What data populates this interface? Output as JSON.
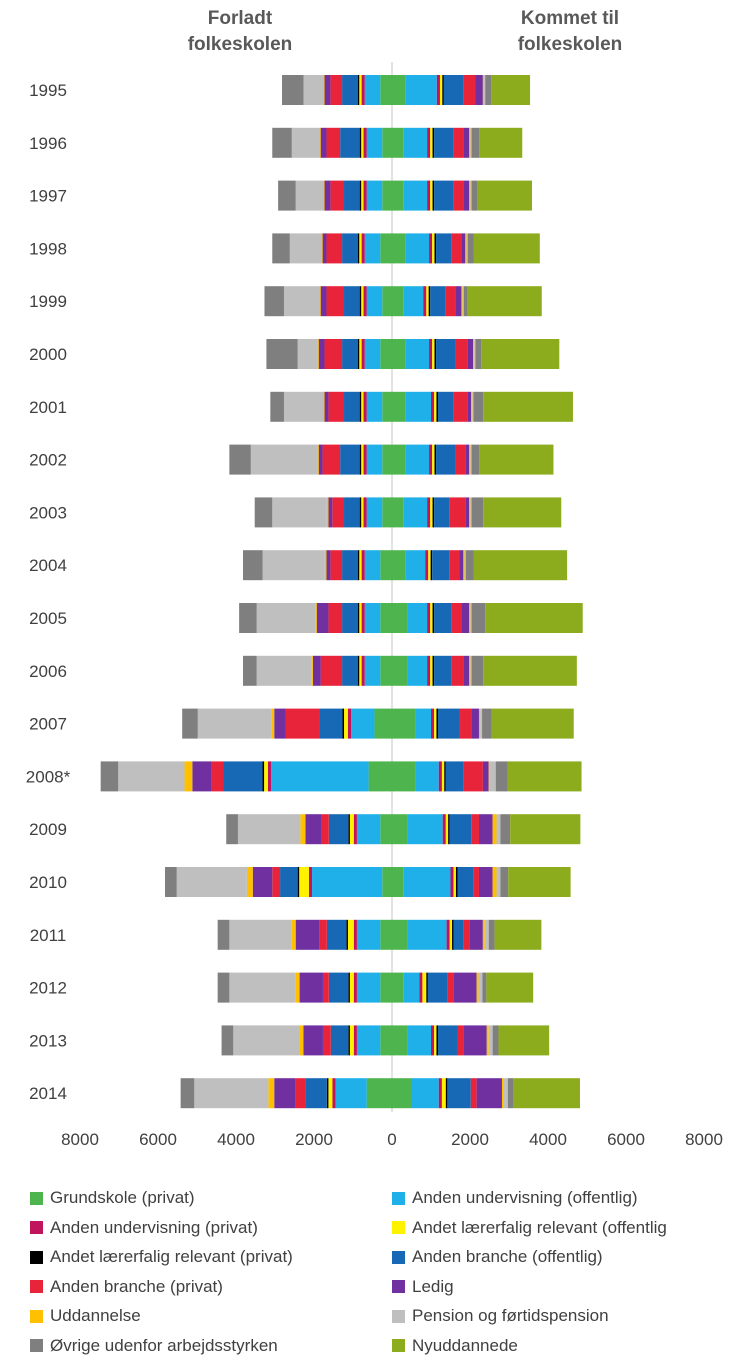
{
  "headers": {
    "left_line1": "Forladt",
    "left_line2": "folkeskolen",
    "right_line1": "Kommet til",
    "right_line2": "folkeskolen"
  },
  "categories": [
    "Grundskole",
    "Anden undervisning",
    "Andet lærerfalig relevant",
    "Anden branche",
    "Ledig",
    "Uddannelse",
    "Pension og førtidspension",
    "Øvrige udenfor arbejdsstyrken",
    "Nyuddannede"
  ],
  "colors": {
    "Grundskole": "#4eb44e",
    "Anden undervisning": "#1fb0ea",
    "Andet lærerfalig relevant": "#fff200",
    "Anden branche": "#1769b5",
    "Ledig": "#7030a0",
    "Uddannelse": "#ffc000",
    "Pension og førtidspension": "#bfbfbf",
    "Øvrige udenfor arbejdsstyrken": "#7f7f7f",
    "Nyuddannede": "#8cac1e",
    "Anden undervisning (privat)": "#c0145c",
    "Andet lærerfalig relevant (privat)": "#000000",
    "Anden branche (privat)": "#e8243a"
  },
  "chart_data": {
    "type": "bar",
    "orientation": "horizontal-diverging",
    "categories": [
      "1995",
      "1996",
      "1997",
      "1998",
      "1999",
      "2000",
      "2001",
      "2002",
      "2003",
      "2004",
      "2005",
      "2006",
      "2007",
      "2008*",
      "2009",
      "2010",
      "2011",
      "2012",
      "2013",
      "2014"
    ],
    "xlim": [
      -8000,
      8000
    ],
    "x_ticks": [
      "8000",
      "6000",
      "4000",
      "2000",
      "0",
      "2000",
      "4000",
      "6000",
      "8000"
    ],
    "left_series_order": [
      "Grundskole (privat)",
      "Anden undervisning (offentlig)",
      "Anden undervisning (privat)",
      "Andet lærerfalig relevant (offentlig)",
      "Andet lærerfalig relevant (privat)",
      "Anden branche (offentlig)",
      "Anden branche (privat)",
      "Ledig",
      "Uddannelse",
      "Pension og førtidspension",
      "Øvrige udenfor arbejdsstyrken"
    ],
    "right_series_order": [
      "Grundskole (privat)",
      "Anden undervisning (offentlig)",
      "Anden undervisning (privat)",
      "Andet lærerfalig relevant (offentlig)",
      "Andet lærerfalig relevant (privat)",
      "Anden branche (offentlig)",
      "Anden branche (privat)",
      "Ledig",
      "Uddannelse",
      "Pension og førtidspension",
      "Øvrige udenfor arbejdsstyrken",
      "Nyuddannede"
    ],
    "left_values": {
      "Grundskole (privat)": [
        300,
        250,
        250,
        300,
        250,
        300,
        250,
        250,
        250,
        300,
        300,
        300,
        450,
        600,
        300,
        250,
        300,
        300,
        300,
        650
      ],
      "Anden undervisning (offentlig)": [
        400,
        400,
        400,
        400,
        400,
        400,
        400,
        400,
        400,
        400,
        400,
        400,
        600,
        2500,
        600,
        1800,
        600,
        600,
        600,
        800
      ],
      "Anden undervisning (privat)": [
        80,
        80,
        80,
        80,
        80,
        80,
        80,
        80,
        80,
        80,
        80,
        80,
        80,
        80,
        80,
        80,
        80,
        80,
        80,
        80
      ],
      "Andet lærerfalig relevant (offentlig)": [
        60,
        60,
        60,
        60,
        60,
        60,
        60,
        60,
        60,
        60,
        60,
        60,
        100,
        100,
        100,
        250,
        150,
        100,
        100,
        100
      ],
      "Andet lærerfalig relevant (privat)": [
        40,
        40,
        40,
        40,
        40,
        40,
        40,
        40,
        40,
        40,
        40,
        40,
        40,
        40,
        40,
        40,
        40,
        40,
        40,
        40
      ],
      "Anden branche (offentlig)": [
        400,
        500,
        400,
        400,
        400,
        400,
        400,
        500,
        400,
        400,
        400,
        400,
        600,
        1000,
        500,
        450,
        500,
        500,
        450,
        550
      ],
      "Anden branche (privat)": [
        300,
        350,
        350,
        400,
        450,
        450,
        400,
        450,
        300,
        300,
        350,
        550,
        850,
        300,
        200,
        200,
        200,
        150,
        200,
        250
      ],
      "Ledig": [
        150,
        150,
        150,
        100,
        150,
        150,
        100,
        100,
        100,
        100,
        300,
        200,
        300,
        500,
        400,
        500,
        600,
        600,
        500,
        550
      ],
      "Uddannelse": [
        40,
        40,
        40,
        40,
        40,
        40,
        40,
        40,
        40,
        40,
        40,
        40,
        60,
        200,
        130,
        150,
        100,
        100,
        100,
        150
      ],
      "Pension og førtidspension": [
        500,
        700,
        700,
        800,
        900,
        500,
        1000,
        1700,
        1400,
        1600,
        1500,
        1400,
        1900,
        1700,
        1600,
        1800,
        1600,
        1700,
        1700,
        1900
      ],
      "Øvrige udenfor arbejdsstyrken": [
        550,
        500,
        450,
        450,
        500,
        800,
        350,
        550,
        450,
        500,
        450,
        350,
        400,
        450,
        300,
        300,
        300,
        300,
        300,
        350
      ]
    },
    "right_values": {
      "Grundskole (privat)": [
        350,
        300,
        300,
        350,
        300,
        350,
        350,
        350,
        300,
        350,
        400,
        400,
        600,
        600,
        400,
        300,
        400,
        300,
        400,
        500
      ],
      "Anden undervisning (offentlig)": [
        800,
        600,
        600,
        600,
        500,
        600,
        650,
        600,
        600,
        500,
        500,
        500,
        400,
        600,
        900,
        1200,
        1000,
        400,
        600,
        700
      ],
      "Anden undervisning (privat)": [
        80,
        80,
        80,
        80,
        80,
        80,
        80,
        80,
        80,
        80,
        80,
        80,
        80,
        80,
        80,
        80,
        80,
        80,
        80,
        80
      ],
      "Andet lærerfalig relevant (offentlig)": [
        60,
        60,
        60,
        60,
        60,
        60,
        60,
        60,
        60,
        60,
        60,
        60,
        60,
        60,
        60,
        60,
        60,
        100,
        60,
        100
      ],
      "Andet lærerfalig relevant (privat)": [
        40,
        40,
        40,
        40,
        40,
        40,
        40,
        40,
        40,
        40,
        40,
        40,
        40,
        40,
        40,
        40,
        40,
        40,
        40,
        40
      ],
      "Anden branche (offentlig)": [
        500,
        500,
        500,
        400,
        400,
        500,
        400,
        500,
        400,
        450,
        450,
        450,
        550,
        450,
        550,
        400,
        250,
        500,
        500,
        600
      ],
      "Anden branche (privat)": [
        300,
        250,
        250,
        250,
        250,
        300,
        350,
        250,
        400,
        250,
        250,
        300,
        300,
        500,
        200,
        150,
        150,
        150,
        150,
        150
      ],
      "Ledig": [
        200,
        150,
        150,
        100,
        150,
        150,
        100,
        100,
        100,
        100,
        200,
        150,
        200,
        150,
        350,
        350,
        350,
        600,
        600,
        650
      ],
      "Uddannelse": [
        30,
        30,
        30,
        30,
        30,
        30,
        30,
        30,
        30,
        30,
        30,
        30,
        30,
        30,
        100,
        100,
        50,
        50,
        50,
        50
      ],
      "Pension og førtidspension": [
        30,
        30,
        30,
        30,
        30,
        30,
        30,
        30,
        30,
        30,
        30,
        30,
        50,
        150,
        100,
        100,
        100,
        100,
        100,
        100
      ],
      "Øvrige udenfor arbejdsstyrken": [
        150,
        200,
        150,
        150,
        100,
        150,
        250,
        200,
        300,
        200,
        350,
        300,
        250,
        300,
        250,
        200,
        150,
        100,
        150,
        150
      ],
      "Nyuddannede": [
        1000,
        1100,
        1400,
        1700,
        1900,
        2000,
        2300,
        1900,
        2000,
        2400,
        2500,
        2400,
        2100,
        1900,
        1800,
        1600,
        1200,
        1200,
        1300,
        1700
      ]
    },
    "grid": false,
    "legend_position": "bottom",
    "legend": [
      {
        "name": "Grundskole (privat)",
        "color": "#4eb44e"
      },
      {
        "name": "Anden undervisning (offentlig)",
        "color": "#1fb0ea"
      },
      {
        "name": "Anden undervisning (privat)",
        "color": "#c0145c"
      },
      {
        "name": "Andet lærerfalig relevant (offentlig",
        "color": "#fff200"
      },
      {
        "name": "Andet lærerfalig relevant (privat)",
        "color": "#000000"
      },
      {
        "name": "Anden branche (offentlig)",
        "color": "#1769b5"
      },
      {
        "name": "Anden branche (privat)",
        "color": "#e8243a"
      },
      {
        "name": "Ledig",
        "color": "#7030a0"
      },
      {
        "name": "Uddannelse",
        "color": "#ffc000"
      },
      {
        "name": "Pension og førtidspension",
        "color": "#bfbfbf"
      },
      {
        "name": "Øvrige udenfor arbejdsstyrken",
        "color": "#7f7f7f"
      },
      {
        "name": "Nyuddannede",
        "color": "#8cac1e"
      }
    ]
  }
}
